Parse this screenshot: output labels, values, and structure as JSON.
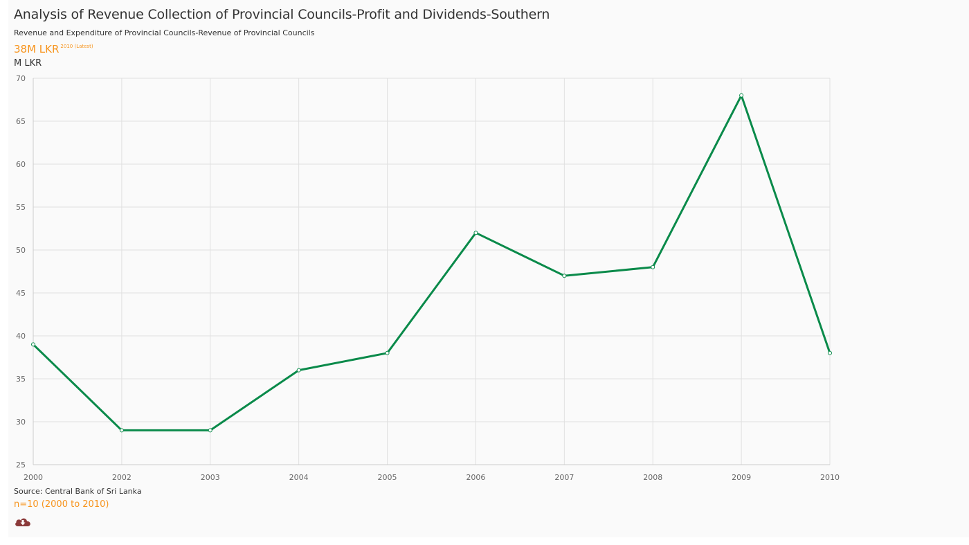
{
  "header": {
    "title": "Analysis of Revenue Collection of Provincial Councils-Profit and Dividends-Southern",
    "subtitle": "Revenue and Expenditure of Provincial Councils-Revenue of Provincial Councils",
    "latest_value": "38M LKR",
    "latest_note": "2010 (Latest)",
    "unit": "M LKR"
  },
  "footer": {
    "source": "Source: Central Bank of Sri Lanka",
    "range": "n=10 (2000 to 2010)",
    "download_icon": "cloud-download-icon"
  },
  "colors": {
    "line": "#0a8a4a",
    "accent": "#f7941d",
    "grid": "#e0e0e0",
    "download": "#8b3a3a"
  },
  "chart_data": {
    "type": "line",
    "x": [
      "2000",
      "2002",
      "2003",
      "2004",
      "2005",
      "2006",
      "2007",
      "2008",
      "2009",
      "2010"
    ],
    "series": [
      {
        "values": [
          39,
          29,
          29,
          36,
          38,
          52,
          47,
          48,
          68,
          38
        ]
      }
    ],
    "ylim": [
      25,
      70
    ],
    "yticks": [
      25,
      30,
      35,
      40,
      45,
      50,
      55,
      60,
      65,
      70
    ],
    "xlabel": "",
    "ylabel": "M LKR",
    "grid": true,
    "legend": "none"
  }
}
